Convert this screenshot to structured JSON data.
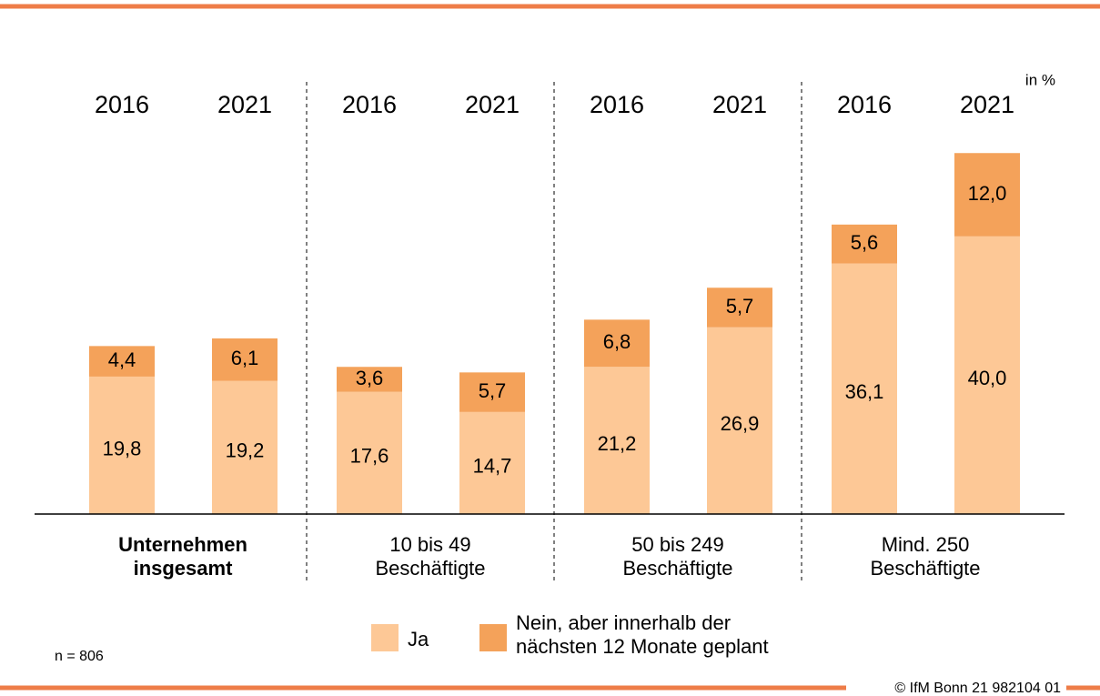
{
  "chart_data": {
    "type": "stacked_bar",
    "unit_label": "in %",
    "note": "n = 806",
    "source": "© IfM Bonn 21 982104 01",
    "categories": [
      "2016",
      "2021",
      "2016",
      "2021",
      "2016",
      "2021",
      "2016",
      "2021"
    ],
    "groups": [
      "Unternehmen\ninsgesamt",
      "10 bis 49\nBeschäftigte",
      "50 bis 249\nBeschäftigte",
      "Mind. 250\nBeschäftigte"
    ],
    "series": [
      {
        "name": "Ja",
        "color": "#fdc896",
        "values": [
          19.8,
          19.2,
          17.6,
          14.7,
          21.2,
          26.9,
          36.1,
          40.0
        ],
        "value_labels": [
          "19,8",
          "19,2",
          "17,6",
          "14,7",
          "21,2",
          "26,9",
          "36,1",
          "40,0"
        ]
      },
      {
        "name": "Nein, aber innerhalb der\nnächsten 12 Monate geplant",
        "color": "#f4a25a",
        "values": [
          4.4,
          6.1,
          3.6,
          5.7,
          6.8,
          5.7,
          5.6,
          12.0
        ],
        "value_labels": [
          "4,4",
          "6,1",
          "3,6",
          "5,7",
          "6,8",
          "5,7",
          "5,6",
          "12,0"
        ]
      }
    ]
  }
}
